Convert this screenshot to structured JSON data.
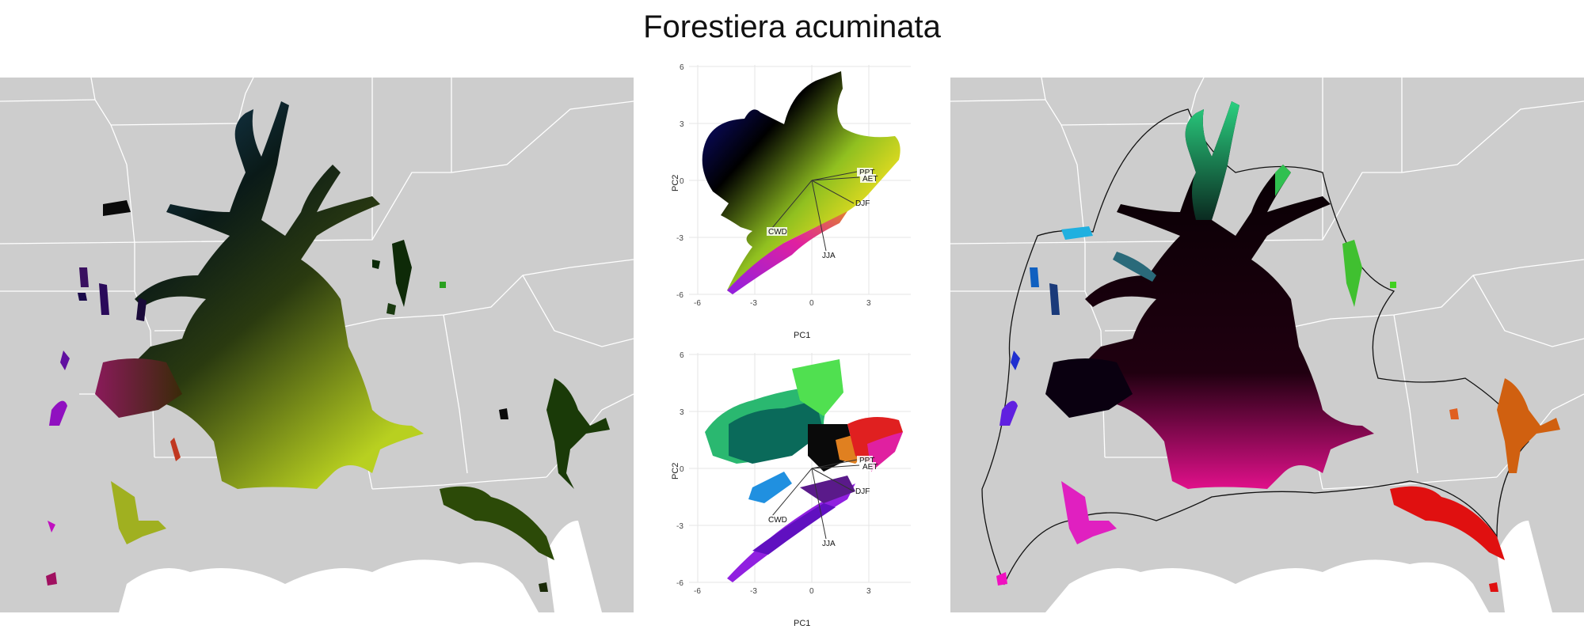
{
  "title": "Forestiera acuminata",
  "pca": {
    "x_label": "PC1",
    "y_label": "PC2",
    "x_ticks": [
      "-6",
      "-3",
      "0",
      "3"
    ],
    "y_ticks": [
      "6",
      "3",
      "0",
      "-3",
      "-6"
    ],
    "vectors": [
      "PPT",
      "AET",
      "DJF",
      "CWD",
      "JJA"
    ]
  },
  "colors": {
    "map_background": "#cdcdcd",
    "borders": "#ffffff",
    "sea": "#ffffff"
  }
}
